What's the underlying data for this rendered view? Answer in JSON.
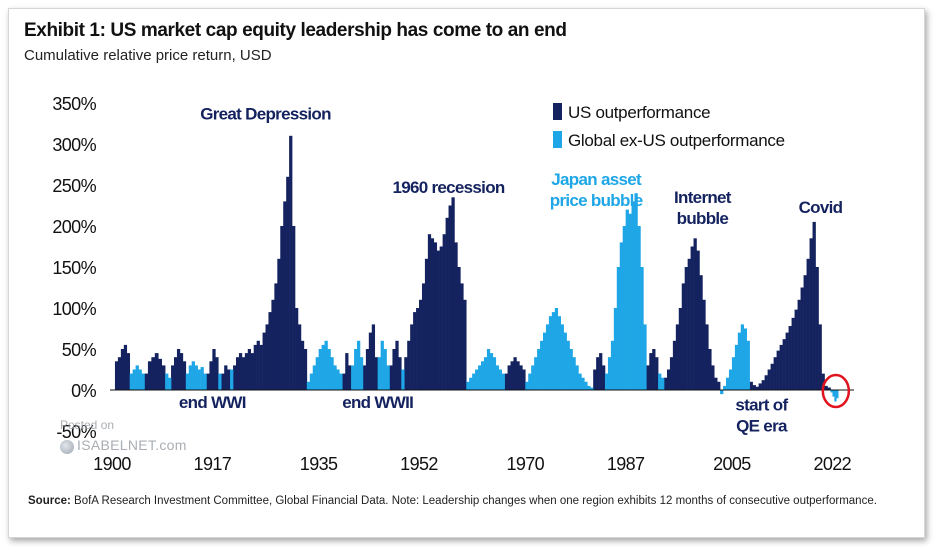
{
  "header": {
    "title": "Exhibit 1: US market cap equity leadership has come to an end",
    "subtitle": "Cumulative relative price return, USD"
  },
  "footer": {
    "source_label": "Source:",
    "source_text": "BofA Research Investment Committee, Global Financial Data. Note: Leadership changes when one region exhibits 12 months of consecutive outperformance."
  },
  "watermark": {
    "line1": "Posted on",
    "line2": "ISABELNET.com"
  },
  "colors": {
    "us": "#14235f",
    "global": "#1ea6e6",
    "highlight_circle": "#e0141e",
    "axis": "#111111"
  },
  "chart_data": {
    "type": "bar",
    "legend_position": "top-right",
    "grid": false,
    "ylim": [
      -50,
      350
    ],
    "xlim": [
      1900,
      2025
    ],
    "y_ticks": [
      "350%",
      "300%",
      "250%",
      "200%",
      "150%",
      "100%",
      "50%",
      "0%",
      "-50%"
    ],
    "y_tick_values": [
      350,
      300,
      250,
      200,
      150,
      100,
      50,
      0,
      -50
    ],
    "x_ticks": [
      "1900",
      "1917",
      "1935",
      "1952",
      "1970",
      "1987",
      "2005",
      "2022"
    ],
    "x_tick_values": [
      1900,
      1917,
      1935,
      1952,
      1970,
      1987,
      2005,
      2022
    ],
    "legend": [
      "US outperformance",
      "Global ex-US outperformance"
    ],
    "annotations": [
      {
        "text": "Great Depression",
        "lines": [
          "Great Depression"
        ],
        "series": "us",
        "x": 1926,
        "y": 330
      },
      {
        "text": "end WWI",
        "lines": [
          "end WWI"
        ],
        "series": "us",
        "x": 1917,
        "y": -22
      },
      {
        "text": "1960 recession",
        "lines": [
          "1960 recession"
        ],
        "series": "us",
        "x": 1957,
        "y": 240
      },
      {
        "text": "end WWII",
        "lines": [
          "end WWII"
        ],
        "series": "us",
        "x": 1945,
        "y": -22
      },
      {
        "text": "Japan asset price bubble",
        "lines": [
          "Japan asset",
          "price bubble"
        ],
        "series": "global",
        "x": 1982,
        "y": 250
      },
      {
        "text": "Internet bubble",
        "lines": [
          "Internet",
          "bubble"
        ],
        "series": "us",
        "x": 2000,
        "y": 228
      },
      {
        "text": "start of QE era",
        "lines": [
          "start of",
          "QE era"
        ],
        "series": "us",
        "x": 2010,
        "y": -25
      },
      {
        "text": "Covid",
        "lines": [
          "Covid"
        ],
        "series": "us",
        "x": 2020,
        "y": 216
      }
    ],
    "series": [
      {
        "name": "US outperformance",
        "key": "us",
        "episodes": [
          {
            "start": 1900.5,
            "end": 1903.0,
            "values": [
              35,
              40,
              50,
              55,
              45
            ]
          },
          {
            "start": 1905.5,
            "end": 1909.0,
            "values": [
              20,
              35,
              40,
              45,
              38,
              30
            ]
          },
          {
            "start": 1910.0,
            "end": 1912.5,
            "values": [
              30,
              40,
              50,
              45,
              35
            ]
          },
          {
            "start": 1916.0,
            "end": 1918.0,
            "values": [
              20,
              35,
              50,
              40
            ]
          },
          {
            "start": 1918.5,
            "end": 1920.0,
            "values": [
              20,
              30,
              25
            ]
          },
          {
            "start": 1920.5,
            "end": 1933.0,
            "values": [
              30,
              40,
              45,
              40,
              45,
              50,
              45,
              55,
              60,
              55,
              70,
              80,
              95,
              110,
              130,
              160,
              200,
              230,
              260,
              310,
              200,
              100,
              80,
              60,
              50
            ]
          },
          {
            "start": 1939.0,
            "end": 1940.5,
            "values": [
              20,
              45,
              30
            ]
          },
          {
            "start": 1942.5,
            "end": 1945.0,
            "values": [
              30,
              50,
              70,
              80,
              40
            ]
          },
          {
            "start": 1947.0,
            "end": 1949.0,
            "values": [
              30,
              50,
              60,
              40
            ]
          },
          {
            "start": 1949.5,
            "end": 1960.0,
            "values": [
              40,
              60,
              80,
              95,
              100,
              110,
              130,
              160,
              190,
              185,
              180,
              170,
              175,
              190,
              210,
              225,
              235,
              180,
              150,
              130,
              110
            ]
          },
          {
            "start": 1966.5,
            "end": 1970.0,
            "values": [
              20,
              30,
              35,
              40,
              35,
              30,
              25
            ]
          },
          {
            "start": 1981.5,
            "end": 1983.5,
            "values": [
              25,
              40,
              45,
              30
            ]
          },
          {
            "start": 1990.5,
            "end": 1992.5,
            "values": [
              30,
              45,
              50,
              40
            ]
          },
          {
            "start": 1993.5,
            "end": 2003.0,
            "values": [
              15,
              25,
              40,
              60,
              80,
              100,
              130,
              150,
              160,
              175,
              185,
              170,
              140,
              110,
              80,
              50,
              30,
              15,
              10
            ]
          },
          {
            "start": 2008.0,
            "end": 2021.7,
            "values": [
              10,
              6,
              4,
              8,
              12,
              18,
              25,
              32,
              40,
              48,
              55,
              62,
              70,
              78,
              88,
              98,
              110,
              125,
              140,
              160,
              185,
              205,
              150,
              80,
              20,
              5,
              3
            ]
          }
        ]
      },
      {
        "name": "Global ex-US outperformance",
        "key": "global",
        "episodes": [
          {
            "start": 1903.0,
            "end": 1905.5,
            "values": [
              20,
              25,
              30,
              25,
              20
            ]
          },
          {
            "start": 1909.0,
            "end": 1910.0,
            "values": [
              20,
              15
            ]
          },
          {
            "start": 1912.5,
            "end": 1916.0,
            "values": [
              20,
              30,
              35,
              30,
              25,
              28,
              20
            ]
          },
          {
            "start": 1918.0,
            "end": 1918.5,
            "values": [
              20
            ]
          },
          {
            "start": 1920.0,
            "end": 1920.5,
            "values": [
              25
            ]
          },
          {
            "start": 1933.0,
            "end": 1939.0,
            "values": [
              10,
              20,
              30,
              40,
              50,
              55,
              60,
              50,
              40,
              30,
              25,
              20
            ]
          },
          {
            "start": 1940.5,
            "end": 1942.5,
            "values": [
              30,
              50,
              60,
              40
            ]
          },
          {
            "start": 1945.0,
            "end": 1947.0,
            "values": [
              40,
              60,
              50,
              30
            ]
          },
          {
            "start": 1949.0,
            "end": 1949.5,
            "values": [
              25
            ]
          },
          {
            "start": 1960.0,
            "end": 1966.5,
            "values": [
              10,
              15,
              20,
              25,
              30,
              35,
              40,
              50,
              45,
              40,
              30,
              25,
              20
            ]
          },
          {
            "start": 1970.0,
            "end": 1981.5,
            "values": [
              10,
              20,
              30,
              40,
              50,
              60,
              70,
              80,
              90,
              95,
              100,
              90,
              80,
              70,
              60,
              50,
              40,
              30,
              20,
              15,
              10,
              5,
              3
            ]
          },
          {
            "start": 1983.5,
            "end": 1990.5,
            "values": [
              20,
              40,
              60,
              100,
              150,
              180,
              200,
              220,
              215,
              230,
              240,
              200,
              150,
              80
            ]
          },
          {
            "start": 1992.5,
            "end": 1993.5,
            "values": [
              20,
              15
            ]
          },
          {
            "start": 2003.0,
            "end": 2008.0,
            "values": [
              -5,
              5,
              15,
              25,
              40,
              55,
              70,
              80,
              75,
              60
            ]
          },
          {
            "start": 2021.7,
            "end": 2023.0,
            "values": [
              -3,
              -8,
              -14,
              -10
            ]
          }
        ]
      }
    ]
  }
}
